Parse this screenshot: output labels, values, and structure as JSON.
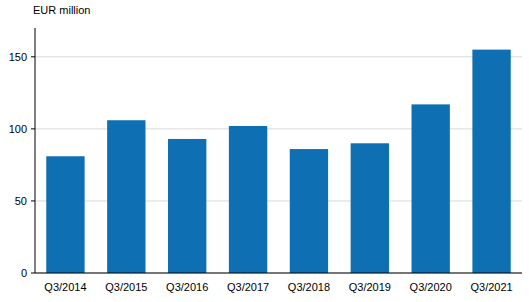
{
  "chart_data": {
    "type": "bar",
    "y_label": "EUR million",
    "categories": [
      "Q3/2014",
      "Q3/2015",
      "Q3/2016",
      "Q3/2017",
      "Q3/2018",
      "Q3/2019",
      "Q3/2020",
      "Q3/2021"
    ],
    "values": [
      81,
      106,
      93,
      102,
      86,
      90,
      117,
      155
    ],
    "color": "#0f6fb3",
    "ylim": [
      0,
      170
    ],
    "yticks": [
      0,
      50,
      100,
      150
    ],
    "grid": true
  }
}
